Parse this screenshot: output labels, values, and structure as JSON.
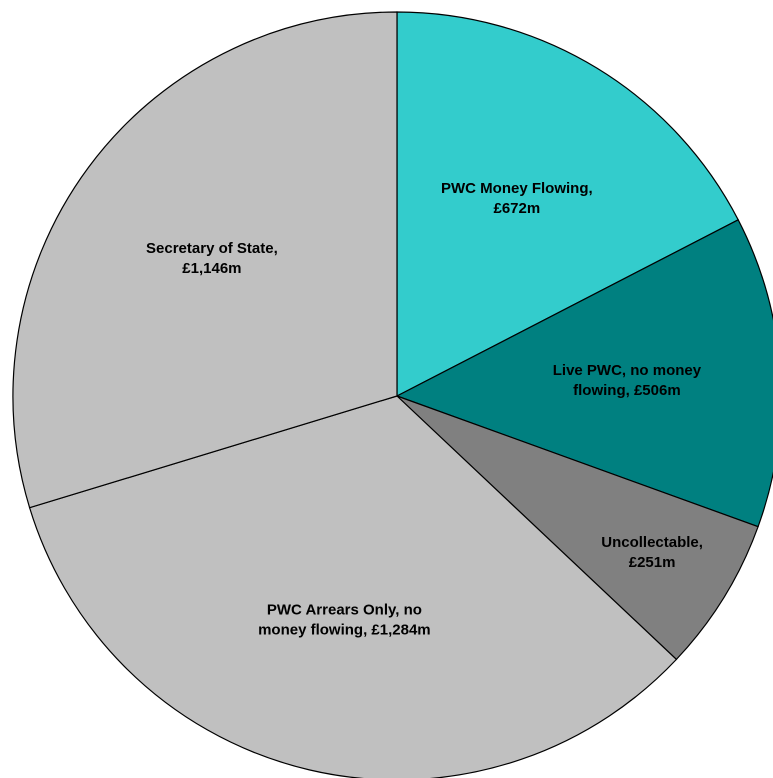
{
  "chart_data": {
    "type": "pie",
    "values": [
      672,
      506,
      251,
      1284,
      1146
    ],
    "value_labels": [
      [
        "PWC Money Flowing,",
        "£672m"
      ],
      [
        "Live PWC, no money",
        "flowing, £506m"
      ],
      [
        "Uncollectable,",
        "£251m"
      ],
      [
        "PWC Arrears Only, no",
        "money flowing, £1,284m"
      ],
      [
        "Secretary of State,",
        "£1,146m"
      ]
    ],
    "colors": [
      "#33CCCC",
      "#008080",
      "#808080",
      "#C0C0C0",
      "#C0C0C0"
    ]
  }
}
